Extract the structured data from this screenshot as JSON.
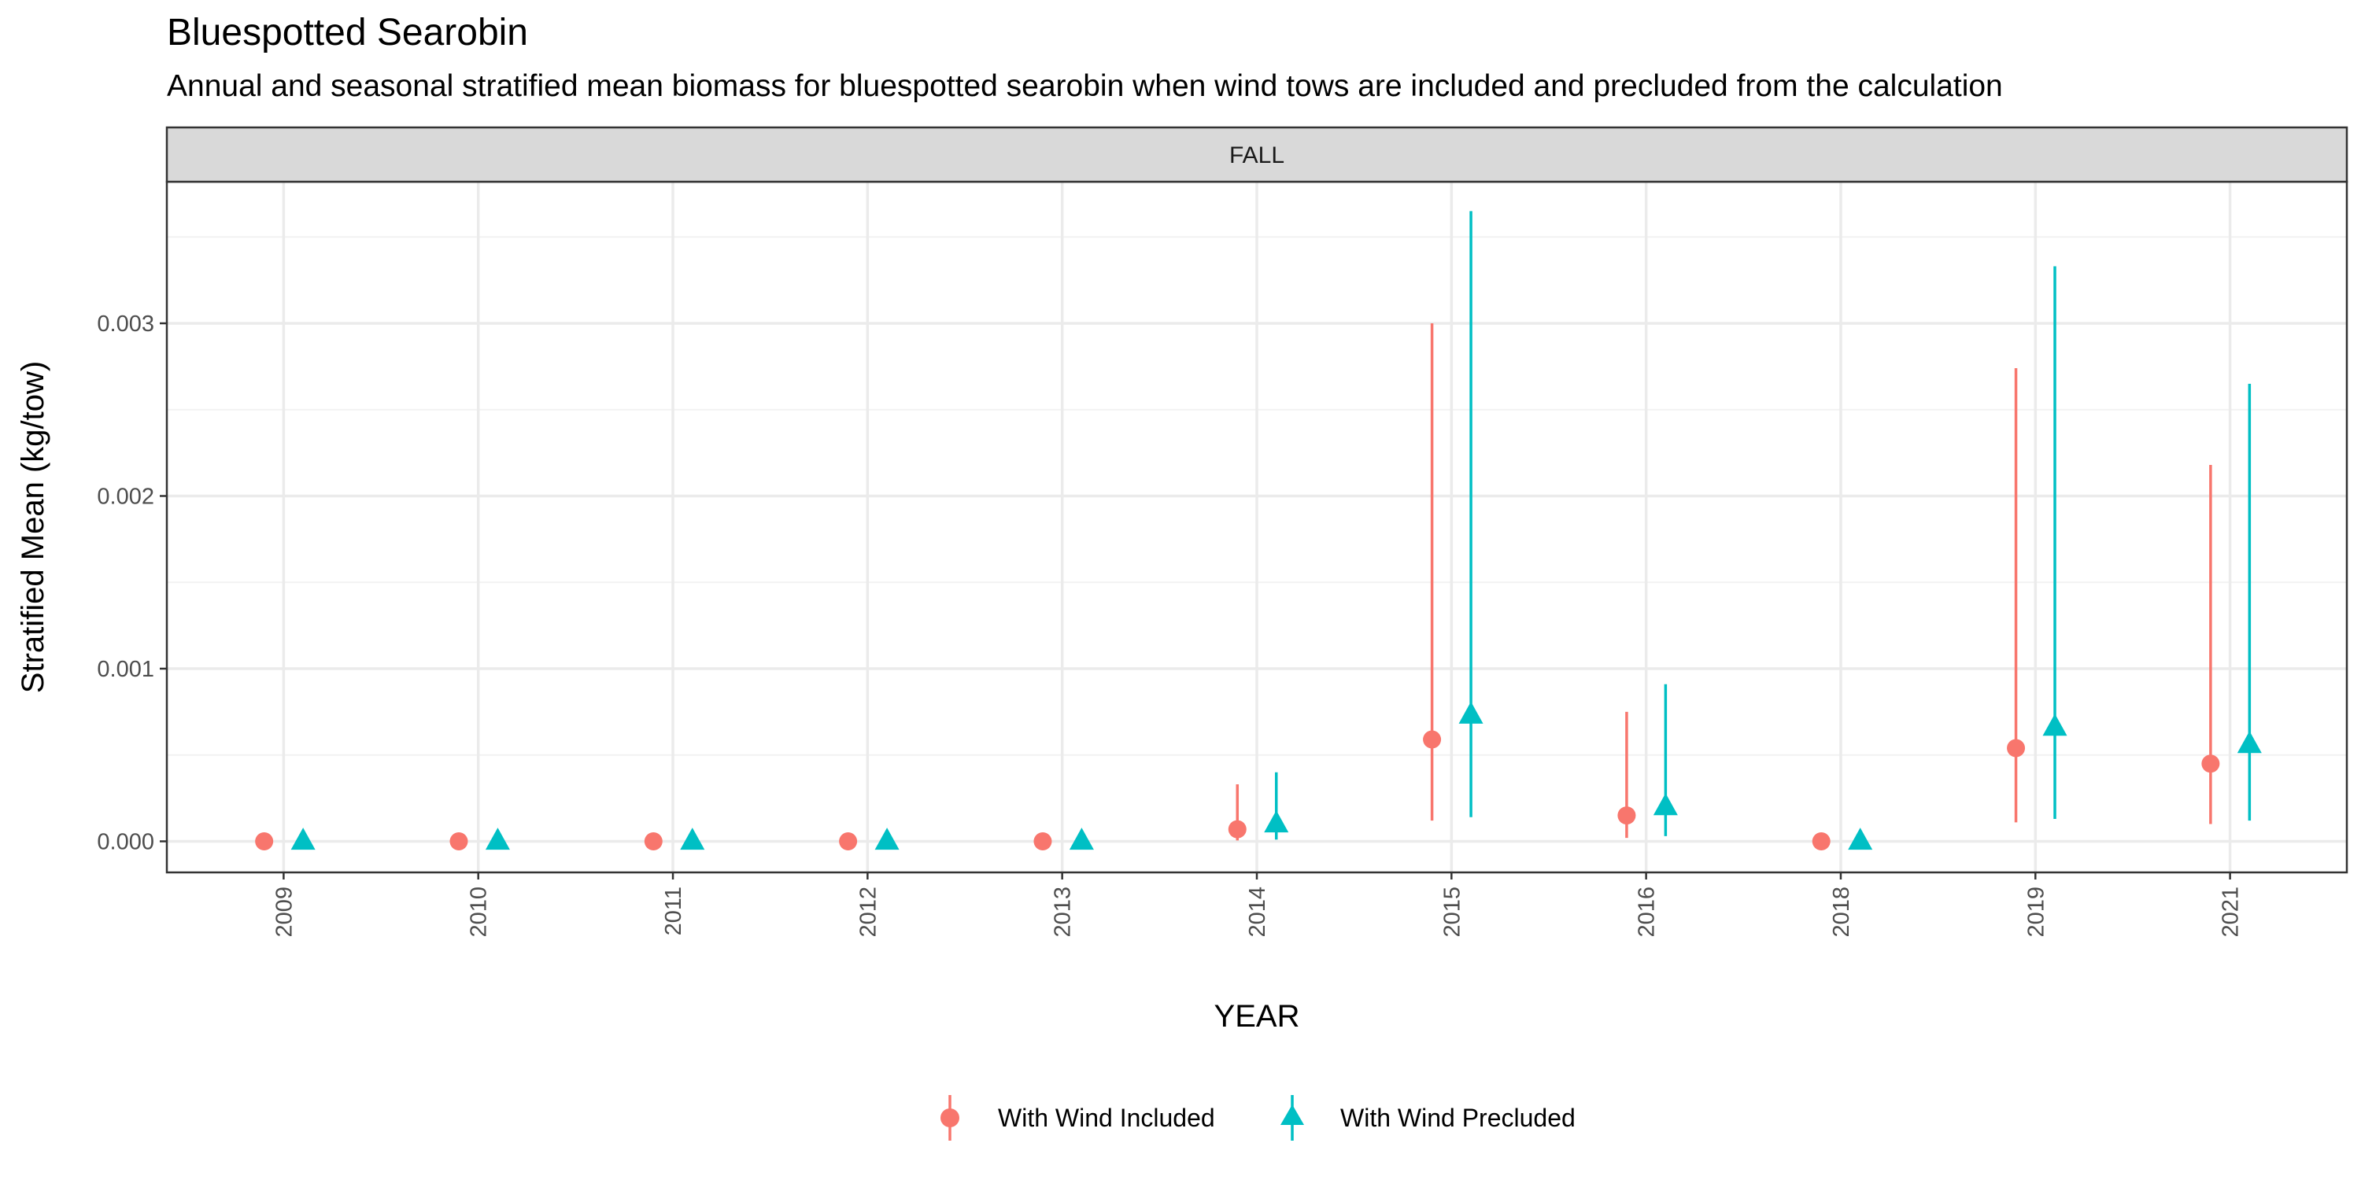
{
  "chart_data": {
    "type": "scatter",
    "title": "Bluespotted Searobin",
    "subtitle": "Annual and seasonal stratified mean biomass for bluespotted searobin when wind tows are included and precluded from the calculation",
    "facet": "FALL",
    "xlabel": "YEAR",
    "ylabel": "Stratified Mean (kg/tow)",
    "categories": [
      "2009",
      "2010",
      "2011",
      "2012",
      "2013",
      "2014",
      "2015",
      "2016",
      "2018",
      "2019",
      "2021"
    ],
    "ylim": [
      -0.00018,
      0.00382
    ],
    "yticks": [
      0.0,
      0.001,
      0.002,
      0.003
    ],
    "ytick_labels": [
      "0.000",
      "0.001",
      "0.002",
      "0.003"
    ],
    "grid": true,
    "legend_position": "bottom",
    "series": [
      {
        "name": "With Wind Included",
        "color": "#F8766D",
        "marker": "circle",
        "values": [
          0.0,
          0.0,
          0.0,
          0.0,
          0.0,
          7e-05,
          0.00059,
          0.00015,
          0.0,
          0.00054,
          0.00045
        ],
        "lower": [
          0.0,
          0.0,
          0.0,
          0.0,
          0.0,
          5e-06,
          0.00012,
          2e-05,
          0.0,
          0.00011,
          0.0001
        ],
        "upper": [
          0.0,
          0.0,
          0.0,
          0.0,
          0.0,
          0.00033,
          0.003,
          0.00075,
          0.0,
          0.00274,
          0.00218
        ]
      },
      {
        "name": "With Wind Precluded",
        "color": "#00BFC4",
        "marker": "triangle",
        "values": [
          0.0,
          0.0,
          0.0,
          0.0,
          0.0,
          0.0001,
          0.00073,
          0.0002,
          0.0,
          0.00066,
          0.00056
        ],
        "lower": [
          0.0,
          0.0,
          0.0,
          0.0,
          0.0,
          1e-05,
          0.00014,
          3e-05,
          0.0,
          0.00013,
          0.00012
        ],
        "upper": [
          0.0,
          0.0,
          0.0,
          0.0,
          0.0,
          0.0004,
          0.00365,
          0.00091,
          0.0,
          0.00333,
          0.00265
        ]
      }
    ]
  }
}
